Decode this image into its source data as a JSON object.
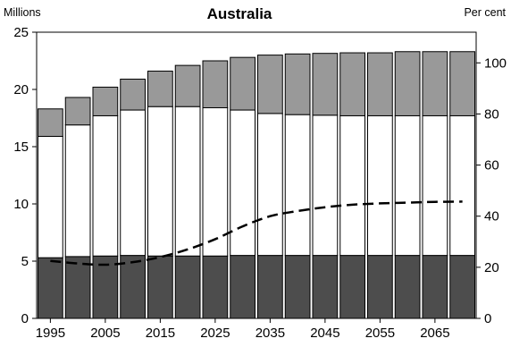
{
  "chart_data": {
    "type": "bar",
    "title": "Australia",
    "y_left_label": "Millions",
    "y_right_label": "Per cent",
    "y_left_lim": [
      0,
      25
    ],
    "y_right_lim": [
      0,
      112
    ],
    "y_left_ticks": [
      "0",
      "5",
      "10",
      "15",
      "20",
      "25"
    ],
    "y_right_ticks": [
      "0",
      "20",
      "40",
      "60",
      "80",
      "100"
    ],
    "x_ticks": [
      "1995",
      "2005",
      "2015",
      "2025",
      "2035",
      "2045",
      "2055",
      "2065"
    ],
    "categories": [
      "1995",
      "2000",
      "2005",
      "2010",
      "2015",
      "2020",
      "2025",
      "2030",
      "2035",
      "2040",
      "2045",
      "2050",
      "2055",
      "2060",
      "2065",
      "2070"
    ],
    "stacked_series": [
      {
        "color": "#4d4d4d",
        "values": [
          5.3,
          5.4,
          5.45,
          5.5,
          5.45,
          5.45,
          5.45,
          5.5,
          5.5,
          5.5,
          5.5,
          5.5,
          5.5,
          5.5,
          5.5,
          5.5
        ]
      },
      {
        "color": "#ffffff",
        "values": [
          10.6,
          11.5,
          12.25,
          12.7,
          13.05,
          13.05,
          12.95,
          12.7,
          12.4,
          12.3,
          12.25,
          12.2,
          12.2,
          12.2,
          12.2,
          12.2
        ]
      },
      {
        "color": "#999999",
        "values": [
          2.4,
          2.4,
          2.5,
          2.7,
          3.1,
          3.6,
          4.1,
          4.6,
          5.1,
          5.3,
          5.4,
          5.5,
          5.5,
          5.6,
          5.6,
          5.6
        ]
      }
    ],
    "line_series": {
      "axis": "right",
      "style": "dashed",
      "x": [
        "1995",
        "2000",
        "2005",
        "2010",
        "2015",
        "2020",
        "2025",
        "2030",
        "2035",
        "2040",
        "2045",
        "2050",
        "2055",
        "2060",
        "2065",
        "2070"
      ],
      "values": [
        22.5,
        21.5,
        21,
        22,
        24,
        27,
        31,
        36,
        40,
        42,
        43.5,
        44.5,
        45,
        45.3,
        45.6,
        45.7
      ]
    }
  }
}
